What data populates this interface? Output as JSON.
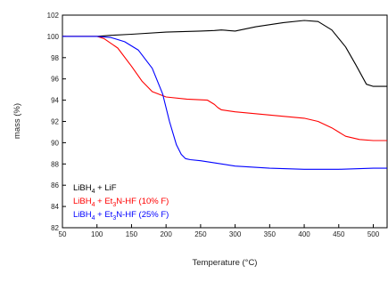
{
  "chart_data": {
    "type": "line",
    "xlabel": "Temperature (°C)",
    "ylabel": "mass (%)",
    "xlim": [
      50,
      520
    ],
    "ylim": [
      82,
      102
    ],
    "xticks": [
      50,
      100,
      150,
      200,
      250,
      300,
      350,
      400,
      450,
      500
    ],
    "yticks": [
      82,
      84,
      86,
      88,
      90,
      92,
      94,
      96,
      98,
      100,
      102
    ],
    "grid": false,
    "legend_position": "bottom-left",
    "series": [
      {
        "name_parts": [
          "LiBH",
          "4",
          " + LiF"
        ],
        "color": "#000000",
        "x": [
          50,
          100,
          120,
          150,
          200,
          250,
          270,
          280,
          300,
          330,
          370,
          400,
          420,
          440,
          460,
          475,
          490,
          500,
          520
        ],
        "y": [
          100.0,
          100.0,
          100.1,
          100.2,
          100.4,
          100.5,
          100.55,
          100.6,
          100.5,
          100.9,
          101.3,
          101.5,
          101.4,
          100.6,
          99.0,
          97.3,
          95.5,
          95.3,
          95.3
        ]
      },
      {
        "name_parts": [
          "LiBH",
          "4",
          " + Et",
          "3",
          "N-HF (10% F)"
        ],
        "color": "#ff0000",
        "x": [
          50,
          100,
          110,
          130,
          150,
          165,
          180,
          200,
          230,
          260,
          270,
          275,
          280,
          300,
          350,
          400,
          420,
          440,
          460,
          480,
          500,
          520
        ],
        "y": [
          100.0,
          100.0,
          99.8,
          98.9,
          97.2,
          95.8,
          94.8,
          94.3,
          94.1,
          94.0,
          93.6,
          93.3,
          93.1,
          92.9,
          92.6,
          92.3,
          92.0,
          91.4,
          90.6,
          90.3,
          90.2,
          90.2
        ]
      },
      {
        "name_parts": [
          "LiBH",
          "4",
          " + Et",
          "3",
          "N-HF (25% F)"
        ],
        "color": "#0000ff",
        "x": [
          50,
          100,
          120,
          140,
          160,
          180,
          195,
          205,
          215,
          222,
          228,
          235,
          250,
          270,
          300,
          350,
          400,
          450,
          500,
          520
        ],
        "y": [
          100.0,
          100.0,
          99.9,
          99.5,
          98.7,
          97.0,
          94.6,
          92.0,
          89.8,
          88.9,
          88.5,
          88.4,
          88.3,
          88.1,
          87.8,
          87.6,
          87.5,
          87.5,
          87.6,
          87.6
        ]
      }
    ]
  }
}
